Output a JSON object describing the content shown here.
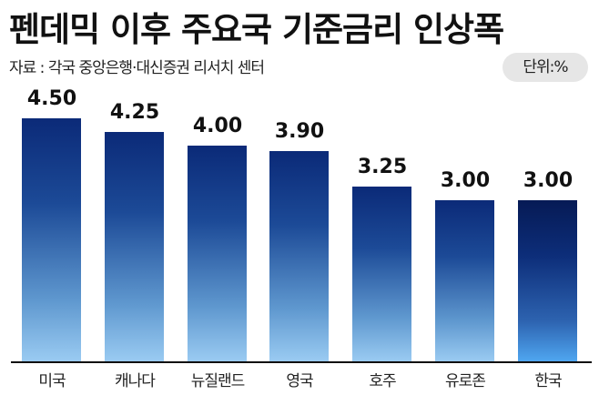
{
  "title": "펜데믹 이후 주요국 기준금리 인상폭",
  "source": "자료 : 각국 중앙은행·대신증권 리서치 센터",
  "unit": "단위:%",
  "colors": {
    "bar_top": "#0b2a78",
    "bar_bottom": "#9acbf2",
    "highlight_top": "#061a55",
    "highlight_bottom": "#4fa6f0"
  },
  "chart_data": {
    "type": "bar",
    "title": "펜데믹 이후 주요국 기준금리 인상폭",
    "subtitle": "자료 : 각국 중앙은행·대신증권 리서치 센터",
    "unit": "%",
    "categories": [
      "미국",
      "캐나다",
      "뉴질랜드",
      "영국",
      "호주",
      "유로존",
      "한국"
    ],
    "values": [
      4.5,
      4.25,
      4.0,
      3.9,
      3.25,
      3.0,
      3.0
    ],
    "labels": [
      "4.50",
      "4.25",
      "4.00",
      "3.90",
      "3.25",
      "3.00",
      "3.00"
    ],
    "highlight": "한국",
    "xlabel": "",
    "ylabel": "",
    "grid": false,
    "legend": null
  }
}
